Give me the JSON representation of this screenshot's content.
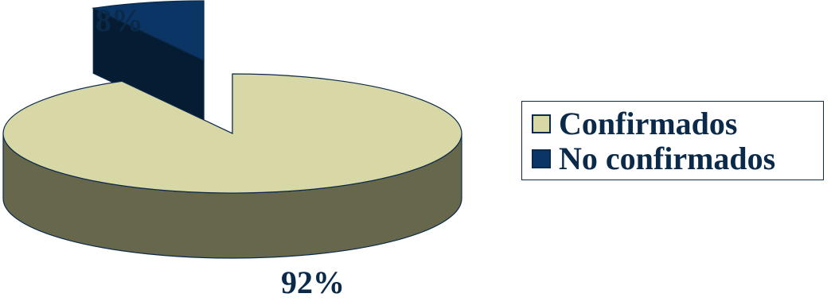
{
  "chart_data": {
    "type": "pie",
    "style": "3d-exploded",
    "categories": [
      "Confirmados",
      "No confirmados"
    ],
    "values": [
      92,
      8
    ],
    "data_labels": [
      "92%",
      "8%"
    ],
    "title": "",
    "legend_position": "right",
    "colors": {
      "Confirmados": {
        "top": "#d8d7a6",
        "side": "#67674c"
      },
      "No confirmados": {
        "top": "#0b3564",
        "side": "#061c33"
      },
      "outline": "#0b2a4a"
    }
  },
  "legend": {
    "items": [
      {
        "label": "Confirmados",
        "color": "#d8d7a6"
      },
      {
        "label": "No confirmados",
        "color": "#0b3564"
      }
    ]
  }
}
